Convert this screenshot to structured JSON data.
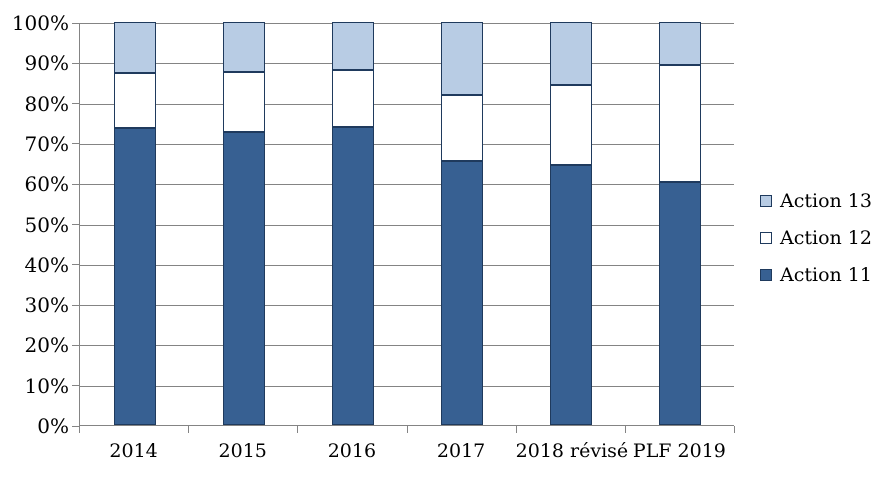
{
  "chart_data": {
    "type": "bar",
    "variant": "stacked-100-percent",
    "title": "",
    "xlabel": "",
    "ylabel": "",
    "categories": [
      "2014",
      "2015",
      "2016",
      "2017",
      "2018 révisé",
      "PLF 2019"
    ],
    "series": [
      {
        "name": "Action 11",
        "color": "#376092",
        "values": [
          73.7,
          72.7,
          74.0,
          65.5,
          64.6,
          60.3
        ]
      },
      {
        "name": "Action 12",
        "color": "#ffffff",
        "values": [
          13.6,
          14.8,
          14.2,
          16.3,
          19.7,
          29.0
        ]
      },
      {
        "name": "Action 13",
        "color": "#b8cce4",
        "values": [
          12.7,
          12.5,
          11.8,
          18.2,
          15.7,
          10.7
        ]
      }
    ],
    "ylim": [
      0,
      100
    ],
    "ytick_step": 10,
    "ytick_labels": [
      "0%",
      "10%",
      "20%",
      "30%",
      "40%",
      "50%",
      "60%",
      "70%",
      "80%",
      "90%",
      "100%"
    ],
    "grid": true,
    "legend": {
      "position": "right",
      "entries": [
        {
          "label": "Action 13",
          "color": "#b8cce4"
        },
        {
          "label": "Action 12",
          "color": "#ffffff"
        },
        {
          "label": "Action 11",
          "color": "#376092"
        }
      ]
    },
    "colors": {
      "bar_border": "#1f3a5d",
      "gridline": "#848484",
      "axis": "#848484",
      "text": "#000000",
      "background": "#ffffff"
    }
  }
}
